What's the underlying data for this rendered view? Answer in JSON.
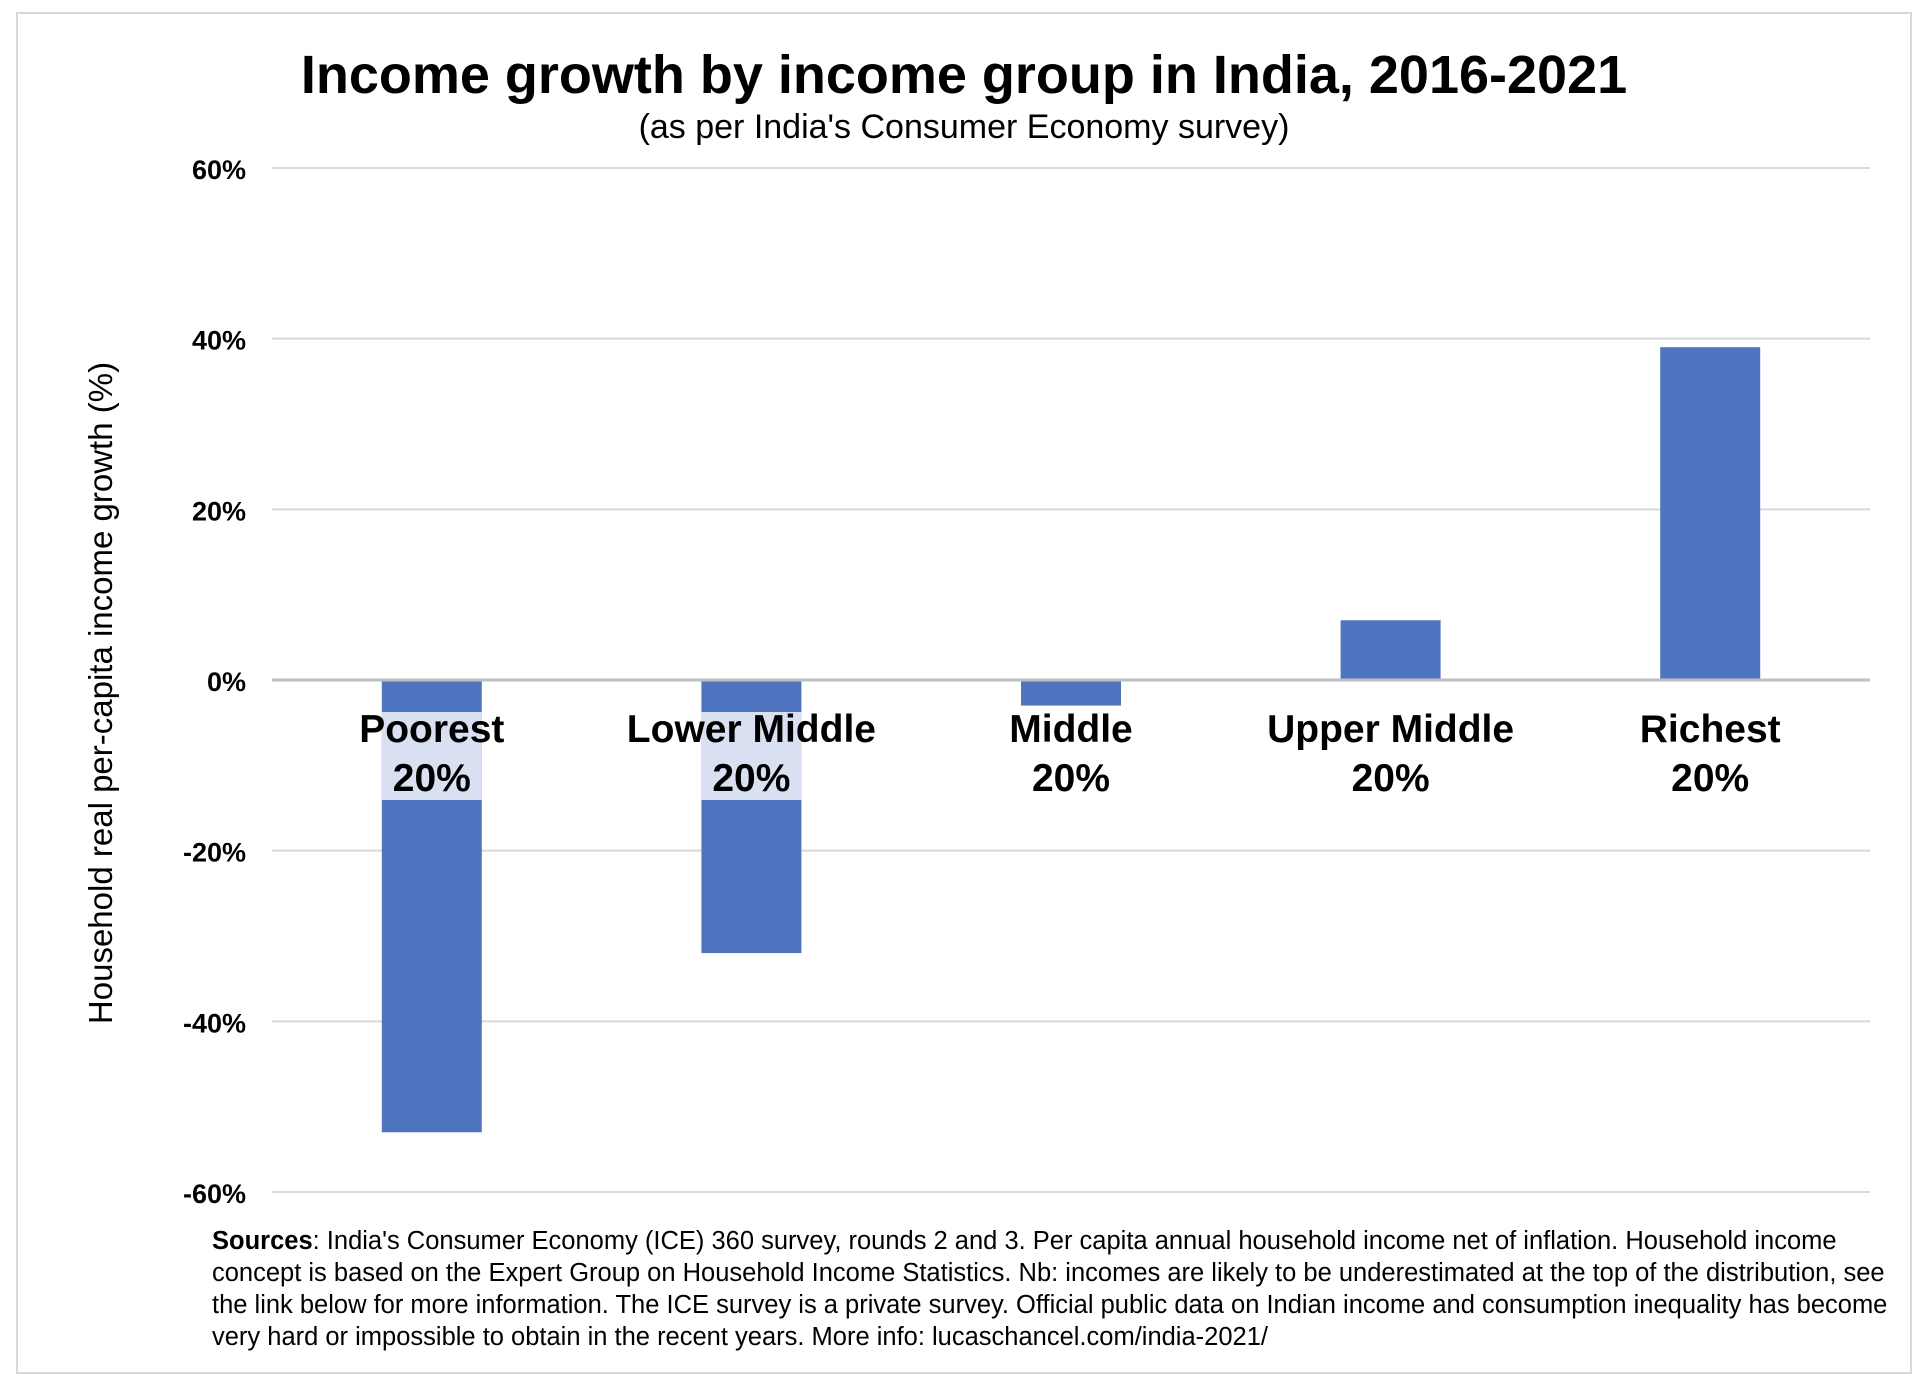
{
  "chart_data": {
    "type": "bar",
    "title": "Income growth by income group in India, 2016-2021",
    "subtitle": "(as per India's Consumer Economy survey)",
    "ylabel": "Household real per-capita income growth (%)",
    "xlabel": "",
    "categories": [
      [
        "Poorest",
        "20%"
      ],
      [
        "Lower Middle",
        "20%"
      ],
      [
        "Middle",
        "20%"
      ],
      [
        "Upper Middle",
        "20%"
      ],
      [
        "Richest",
        "20%"
      ]
    ],
    "values": [
      -53,
      -32,
      -3,
      7,
      39
    ],
    "ylim": [
      -60,
      60
    ],
    "yticks": [
      60,
      40,
      20,
      0,
      -20,
      -40,
      -60
    ],
    "ytick_labels": [
      "60%",
      "40%",
      "20%",
      "0%",
      "-20%",
      "-40%",
      "-60%"
    ],
    "grid": true,
    "legend": "none",
    "colors": {
      "bar": "#4f74c0",
      "grid": "#d9d9d9",
      "axis": "#bfbfbf",
      "label_backdrop": "rgba(255,255,255,0.78)"
    }
  },
  "sources": {
    "label": "Sources",
    "text": ": India's Consumer Economy (ICE) 360 survey, rounds 2 and 3. Per capita annual household income net of inflation. Household income concept is based on the Expert Group on Household Income Statistics. Nb: incomes are likely to be underestimated at the top of the distribution, see the link below for more information. The ICE survey is a private survey. Official public data on Indian income and consumption inequality has become very hard or impossible to obtain in the recent years. More info: lucaschancel.com/india-2021/"
  }
}
